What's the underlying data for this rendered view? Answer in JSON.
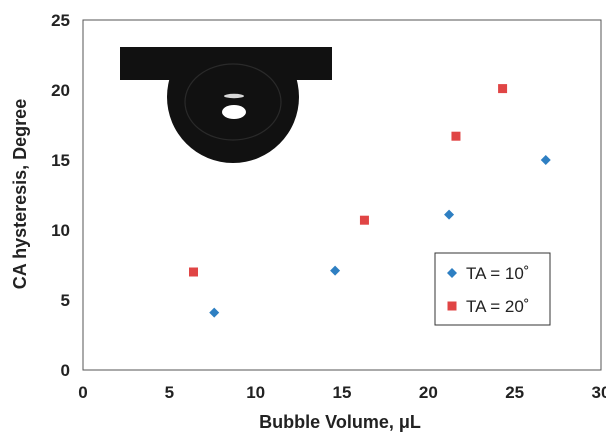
{
  "chart_data": {
    "type": "scatter",
    "xlabel": "Bubble Volume, μL",
    "ylabel": "CA hysteresis, Degree",
    "xlim": [
      0,
      30
    ],
    "ylim": [
      0,
      25
    ],
    "xticks": [
      "0",
      "5",
      "10",
      "15",
      "20",
      "25",
      "30"
    ],
    "yticks": [
      "0",
      "5",
      "10",
      "15",
      "20",
      "25"
    ],
    "grid": false,
    "legend_position": "bottom-right",
    "series": [
      {
        "name": "TA = 10˚",
        "marker": "diamond",
        "color": "#2e7fc2",
        "x": [
          7.6,
          14.6,
          21.2,
          26.8
        ],
        "y": [
          4.1,
          7.1,
          11.1,
          15.0
        ]
      },
      {
        "name": "TA = 20˚",
        "marker": "square",
        "color": "#e04545",
        "x": [
          6.4,
          16.3,
          21.6,
          24.3
        ],
        "y": [
          7.0,
          10.7,
          16.7,
          20.1
        ]
      }
    ]
  },
  "inset_image": "bubble-under-substrate-photo"
}
